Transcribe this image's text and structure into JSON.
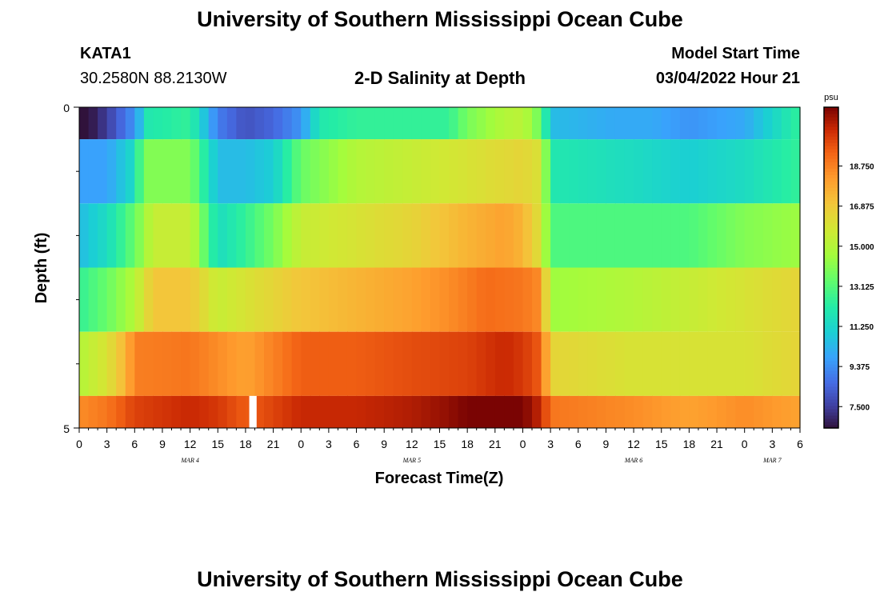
{
  "header": {
    "title": "University of Southern Mississippi Ocean Cube",
    "station_id": "KATA1",
    "station_coords": "30.2580N  88.2130W",
    "plot_title": "2-D Salinity at Depth",
    "model_start_label": "Model Start Time",
    "model_start_value": "03/04/2022 Hour 21"
  },
  "footer": {
    "title": "University of Southern Mississippi Ocean Cube"
  },
  "chart_data": {
    "type": "heatmap",
    "title": "2-D Salinity at Depth",
    "xlabel": "Forecast Time(Z)",
    "ylabel": "Depth (ft)",
    "x_tick_labels": [
      "0",
      "3",
      "6",
      "9",
      "12",
      "15",
      "18",
      "21",
      "0",
      "3",
      "6",
      "9",
      "12",
      "15",
      "18",
      "21",
      "0",
      "3",
      "6",
      "9",
      "12",
      "15",
      "18",
      "21",
      "0",
      "3",
      "6"
    ],
    "x_hours": [
      0,
      78
    ],
    "day_labels": [
      {
        "label": "MAR 4",
        "hour": 12
      },
      {
        "label": "MAR 5",
        "hour": 36
      },
      {
        "label": "MAR 6",
        "hour": 60
      },
      {
        "label": "MAR 7",
        "hour": 75
      }
    ],
    "y_tick_labels": [
      "0",
      "5"
    ],
    "ylim": [
      0,
      5
    ],
    "layer_bounds_ft": [
      0,
      0.5,
      1.5,
      2.5,
      3.5,
      4.5,
      5
    ],
    "layer_keyframes": [
      [
        [
          0,
          6.0
        ],
        [
          3,
          7.5
        ],
        [
          6,
          9.5
        ],
        [
          7.5,
          12.0
        ],
        [
          12,
          12.5
        ],
        [
          15,
          9.0
        ],
        [
          18,
          8.0
        ],
        [
          21,
          8.5
        ],
        [
          24,
          9.5
        ],
        [
          26,
          12.0
        ],
        [
          30,
          12.5
        ],
        [
          36,
          12.5
        ],
        [
          40,
          12.5
        ],
        [
          42,
          13.8
        ],
        [
          46,
          15.0
        ],
        [
          48,
          15.2
        ],
        [
          50,
          13.5
        ],
        [
          51,
          10.5
        ],
        [
          58,
          10.0
        ],
        [
          62,
          10.0
        ],
        [
          66,
          9.5
        ],
        [
          72,
          10.0
        ],
        [
          78,
          12.5
        ]
      ],
      [
        [
          0,
          9.8
        ],
        [
          3,
          9.8
        ],
        [
          6,
          11.5
        ],
        [
          7,
          14.0
        ],
        [
          12,
          14.0
        ],
        [
          15,
          10.5
        ],
        [
          18,
          10.5
        ],
        [
          21,
          11.0
        ],
        [
          24,
          13.5
        ],
        [
          30,
          15.0
        ],
        [
          36,
          15.5
        ],
        [
          42,
          16.0
        ],
        [
          48,
          16.5
        ],
        [
          50,
          16.0
        ],
        [
          51,
          12.0
        ],
        [
          60,
          11.5
        ],
        [
          66,
          11.0
        ],
        [
          72,
          11.5
        ],
        [
          78,
          12.5
        ]
      ],
      [
        [
          0,
          10.5
        ],
        [
          3,
          11.5
        ],
        [
          6,
          13.5
        ],
        [
          8,
          15.5
        ],
        [
          12,
          15.5
        ],
        [
          15,
          11.5
        ],
        [
          18,
          12.5
        ],
        [
          21,
          13.8
        ],
        [
          24,
          15.5
        ],
        [
          30,
          16.0
        ],
        [
          36,
          16.5
        ],
        [
          42,
          17.5
        ],
        [
          46,
          18.0
        ],
        [
          48,
          17.5
        ],
        [
          50,
          16.0
        ],
        [
          51,
          13.0
        ],
        [
          60,
          13.0
        ],
        [
          66,
          13.0
        ],
        [
          72,
          14.0
        ],
        [
          78,
          14.5
        ]
      ],
      [
        [
          0,
          12.5
        ],
        [
          3,
          13.5
        ],
        [
          6,
          15.0
        ],
        [
          8,
          17.0
        ],
        [
          12,
          17.0
        ],
        [
          15,
          15.5
        ],
        [
          18,
          16.0
        ],
        [
          21,
          16.5
        ],
        [
          24,
          17.0
        ],
        [
          30,
          17.5
        ],
        [
          36,
          18.0
        ],
        [
          40,
          18.5
        ],
        [
          44,
          19.2
        ],
        [
          48,
          19.0
        ],
        [
          50,
          18.5
        ],
        [
          51,
          14.5
        ],
        [
          60,
          15.0
        ],
        [
          66,
          15.5
        ],
        [
          72,
          16.0
        ],
        [
          78,
          16.5
        ]
      ],
      [
        [
          0,
          15.0
        ],
        [
          3,
          16.0
        ],
        [
          5,
          17.5
        ],
        [
          6,
          18.8
        ],
        [
          12,
          19.0
        ],
        [
          15,
          18.5
        ],
        [
          18,
          18.0
        ],
        [
          20,
          18.5
        ],
        [
          24,
          19.5
        ],
        [
          30,
          19.5
        ],
        [
          36,
          19.8
        ],
        [
          42,
          20.0
        ],
        [
          46,
          20.5
        ],
        [
          48,
          20.2
        ],
        [
          50,
          19.5
        ],
        [
          51,
          16.5
        ],
        [
          60,
          16.0
        ],
        [
          66,
          16.0
        ],
        [
          72,
          16.0
        ],
        [
          78,
          16.5
        ]
      ],
      [
        [
          0,
          18.5
        ],
        [
          3,
          19.0
        ],
        [
          6,
          20.0
        ],
        [
          12,
          20.5
        ],
        [
          15,
          20.2
        ],
        [
          18,
          19.5
        ],
        [
          20,
          19.8
        ],
        [
          24,
          20.5
        ],
        [
          30,
          20.5
        ],
        [
          36,
          20.8
        ],
        [
          40,
          21.2
        ],
        [
          42,
          21.5
        ],
        [
          48,
          21.5
        ],
        [
          50,
          20.5
        ],
        [
          51,
          19.0
        ],
        [
          60,
          18.5
        ],
        [
          66,
          18.0
        ],
        [
          72,
          18.5
        ],
        [
          78,
          18.0
        ]
      ]
    ],
    "missing_cells": [
      {
        "layer": 5,
        "hour": 18.8
      }
    ],
    "colorbar": {
      "unit_label": "psu",
      "range": [
        6.5,
        21.5
      ],
      "tick_values": [
        7.5,
        9.375,
        11.25,
        13.125,
        15.0,
        16.875,
        18.75
      ],
      "tick_labels": [
        "7.500",
        "9.375",
        "11.250",
        "13.125",
        "15.000",
        "16.875",
        "18.750"
      ]
    }
  }
}
